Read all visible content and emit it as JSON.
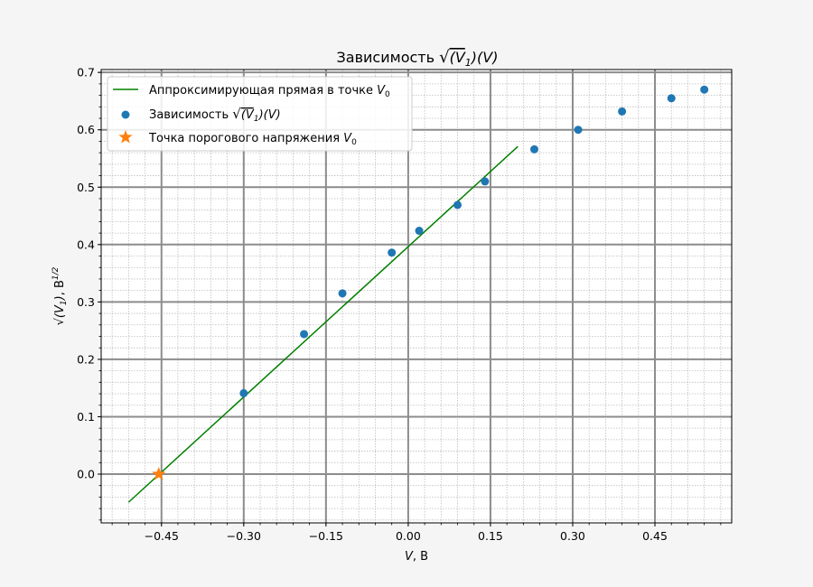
{
  "chart_data": {
    "type": "scatter",
    "title": "Зависимость √(V₁)(V)",
    "title_parts": {
      "pre": "Зависимость ",
      "expr": "(V",
      "sub": "1",
      "post": ")(V)"
    },
    "xlabel": "V, В",
    "xlabel_parts": {
      "var": "V",
      "unit": ", В"
    },
    "ylabel": "√(V₁), В^1/2",
    "ylabel_parts": {
      "expr": "(V",
      "sub": "1",
      "post": ")",
      "unit": ", В",
      "pow": "1/2"
    },
    "xlim": [
      -0.56,
      0.59
    ],
    "ylim": [
      -0.085,
      0.705
    ],
    "grid": true,
    "minor_grid": true,
    "x_ticks": [
      -0.45,
      -0.3,
      -0.15,
      0.0,
      0.15,
      0.3,
      0.45
    ],
    "x_tick_labels": [
      "−0.45",
      "−0.30",
      "−0.15",
      "0.00",
      "0.15",
      "0.30",
      "0.45"
    ],
    "y_ticks": [
      0.0,
      0.1,
      0.2,
      0.3,
      0.4,
      0.5,
      0.6,
      0.7
    ],
    "y_tick_labels": [
      "0.0",
      "0.1",
      "0.2",
      "0.3",
      "0.4",
      "0.5",
      "0.6",
      "0.7"
    ],
    "legend_position": "top-left",
    "series": [
      {
        "name": "Аппроксимирующая прямая в точке V0",
        "legend_text": "Аппроксимирующая прямая в точке ",
        "legend_var": "V",
        "legend_sub": "0",
        "kind": "line",
        "color": "#008000",
        "x": [
          -0.51,
          0.2
        ],
        "y": [
          -0.049,
          0.571
        ]
      },
      {
        "name": "Зависимость √(V1)(V)",
        "legend_text": "Зависимость ",
        "legend_expr": "(V",
        "legend_sub": "1",
        "legend_post": ")(V)",
        "kind": "scatter",
        "color": "#1f77b4",
        "x": [
          -0.3,
          -0.19,
          -0.12,
          -0.03,
          0.02,
          0.09,
          0.14,
          0.23,
          0.31,
          0.39,
          0.48,
          0.54
        ],
        "y": [
          0.141,
          0.244,
          0.315,
          0.386,
          0.424,
          0.469,
          0.51,
          0.566,
          0.6,
          0.632,
          0.655,
          0.67
        ]
      },
      {
        "name": "Точка порогового напряжения V0",
        "legend_text": "Точка порогового напряжения ",
        "legend_var": "V",
        "legend_sub": "0",
        "kind": "marker-star",
        "color": "#ff7f0e",
        "x": [
          -0.455
        ],
        "y": [
          0.0
        ]
      }
    ]
  }
}
